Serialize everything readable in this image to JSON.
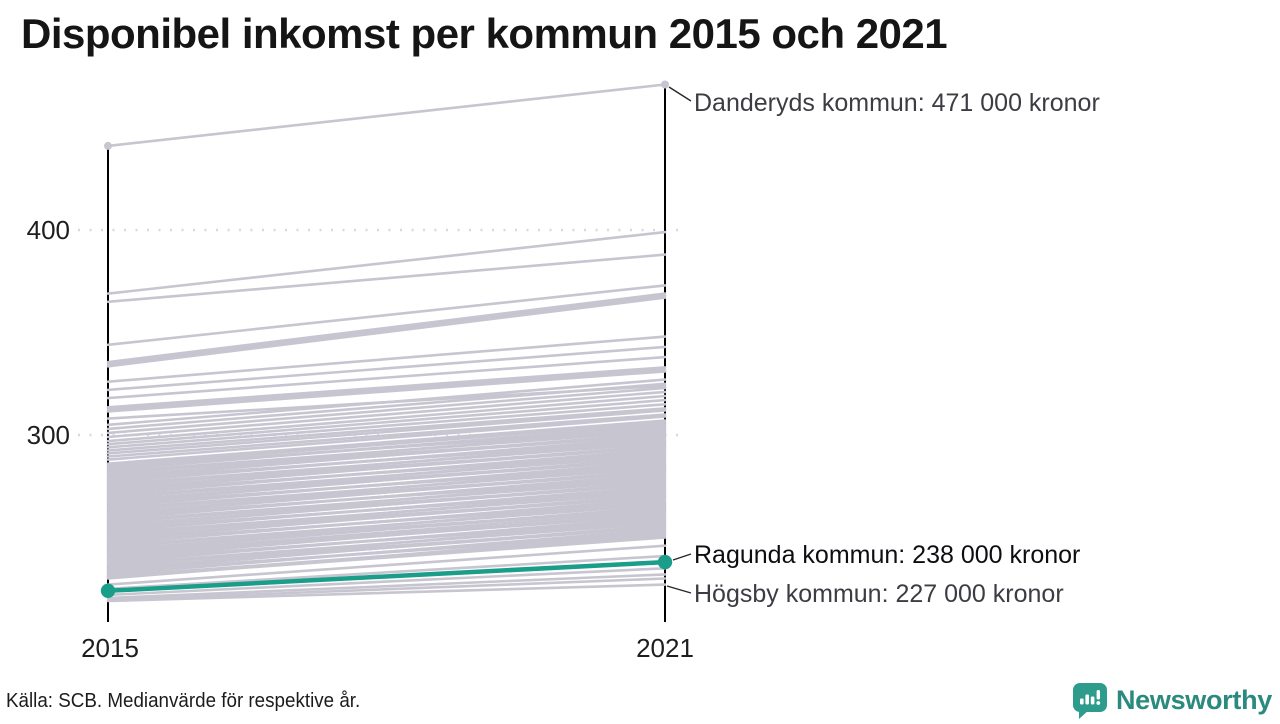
{
  "title": "Disponibel inkomst per kommun 2015 och 2021",
  "footer": {
    "source": "Källa: SCB. Medianvärde för respektive år."
  },
  "logo": {
    "name": "Newsworthy",
    "icon": "newsworthy-speech-bubble-bar-chart-icon"
  },
  "colors": {
    "highlight_green": "#1a9e8a",
    "background_line_gray": "#c7c5d0",
    "grid_gray": "#d9d9dd",
    "axis_black": "#000000",
    "logo_teal": "#2b8a7e"
  },
  "chart_data": {
    "type": "line",
    "variant": "slopegraph",
    "title": "Disponibel inkomst per kommun 2015 och 2021",
    "x_categories": [
      "2015",
      "2021"
    ],
    "y_ticks": [
      "400",
      "300"
    ],
    "y_tick_values": [
      400,
      300
    ],
    "ylim": [
      215,
      480
    ],
    "grid": "dotted-horizontal",
    "annotations": [
      {
        "name": "Danderyds kommun",
        "label": "Danderyds kommun: 471 000 kronor",
        "value_2021": 471
      },
      {
        "name": "Ragunda kommun",
        "label": "Ragunda kommun: 238 000 kronor",
        "value_2021": 238
      },
      {
        "name": "Högsby kommun",
        "label": "Högsby kommun: 227 000 kronor",
        "value_2021": 227
      }
    ],
    "highlighted_series": {
      "name": "Ragunda kommun",
      "values": [
        224,
        238
      ],
      "color": "#1a9e8a",
      "end_dot_radius": 7.2
    },
    "labeled_series": [
      {
        "name": "Danderyds kommun",
        "values": [
          441,
          471
        ],
        "end_dots": true
      },
      {
        "name": "Högsby kommun",
        "values": [
          219,
          227
        ],
        "end_dots": false
      }
    ],
    "background_series_estimated": [
      [
        369,
        399
      ],
      [
        365,
        388
      ],
      [
        344,
        373
      ],
      [
        335.5,
        369
      ],
      [
        334.5,
        368
      ],
      [
        333.5,
        367
      ],
      [
        326,
        348
      ],
      [
        322,
        343
      ],
      [
        318,
        338
      ],
      [
        313.5,
        333
      ],
      [
        312.5,
        332
      ],
      [
        311.5,
        331
      ],
      [
        308,
        324
      ],
      [
        305,
        327
      ],
      [
        303,
        325
      ],
      [
        301,
        323
      ],
      [
        299,
        321
      ],
      [
        297,
        319
      ],
      [
        295.5,
        317
      ],
      [
        294,
        315
      ],
      [
        292.5,
        313
      ],
      [
        291,
        312
      ],
      [
        289.5,
        310
      ],
      [
        288,
        309
      ],
      [
        230,
        252
      ],
      [
        231,
        251
      ],
      [
        232,
        254
      ],
      [
        233,
        253
      ],
      [
        234,
        256
      ],
      [
        235,
        255
      ],
      [
        236,
        258
      ],
      [
        237,
        257
      ],
      [
        238,
        260
      ],
      [
        239,
        259
      ],
      [
        240,
        262
      ],
      [
        241,
        261
      ],
      [
        242,
        263
      ],
      [
        243,
        265
      ],
      [
        244,
        264
      ],
      [
        245,
        267
      ],
      [
        246,
        266
      ],
      [
        247,
        269
      ],
      [
        248,
        268
      ],
      [
        249,
        271
      ],
      [
        250,
        270
      ],
      [
        251,
        273
      ],
      [
        252,
        272
      ],
      [
        253,
        275
      ],
      [
        254,
        274
      ],
      [
        255,
        277
      ],
      [
        256,
        276
      ],
      [
        257,
        279
      ],
      [
        258,
        278
      ],
      [
        259,
        281
      ],
      [
        260,
        280
      ],
      [
        261,
        283
      ],
      [
        262,
        282
      ],
      [
        263,
        285
      ],
      [
        264,
        284
      ],
      [
        265,
        287
      ],
      [
        266,
        286
      ],
      [
        267,
        289
      ],
      [
        268,
        288
      ],
      [
        269,
        291
      ],
      [
        270,
        290
      ],
      [
        271,
        293
      ],
      [
        272,
        292
      ],
      [
        273,
        295
      ],
      [
        274,
        294
      ],
      [
        275,
        297
      ],
      [
        276,
        296
      ],
      [
        277,
        299
      ],
      [
        278,
        298
      ],
      [
        279,
        301
      ],
      [
        280,
        300
      ],
      [
        281,
        303
      ],
      [
        282,
        302
      ],
      [
        283,
        305
      ],
      [
        284,
        304
      ],
      [
        285,
        306
      ],
      [
        286,
        307
      ],
      [
        230.5,
        250
      ],
      [
        233.5,
        252
      ],
      [
        236.5,
        255
      ],
      [
        239.5,
        258
      ],
      [
        242.5,
        261
      ],
      [
        245.5,
        264
      ],
      [
        248.5,
        267
      ],
      [
        251.5,
        270
      ],
      [
        254.5,
        273
      ],
      [
        257.5,
        276
      ],
      [
        260.5,
        279
      ],
      [
        263.5,
        282
      ],
      [
        266.5,
        285
      ],
      [
        269.5,
        288
      ],
      [
        272.5,
        291
      ],
      [
        275.5,
        294
      ],
      [
        278.5,
        297
      ],
      [
        281.5,
        300
      ],
      [
        284.5,
        303
      ],
      [
        227,
        246
      ],
      [
        225,
        241
      ],
      [
        222,
        235
      ],
      [
        220.5,
        232
      ],
      [
        219.5,
        230
      ]
    ]
  }
}
